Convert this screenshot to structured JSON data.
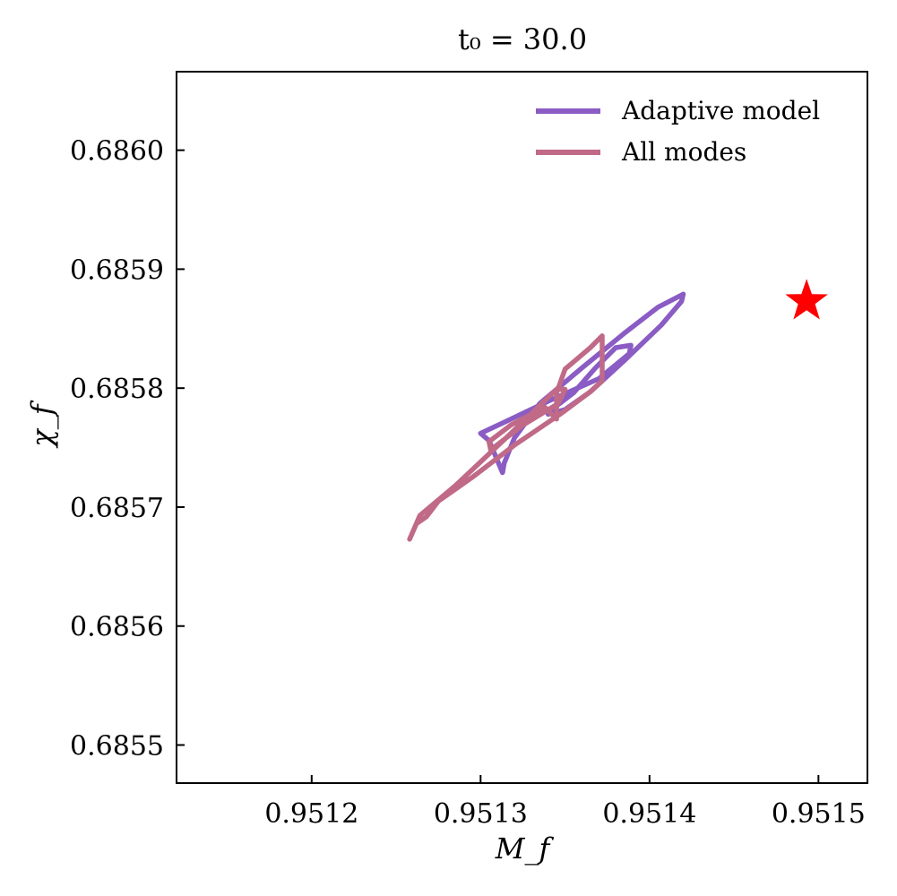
{
  "chart_data": {
    "type": "line",
    "title": "t₀ = 30.0",
    "xlabel": "M_f",
    "ylabel": "χ_f",
    "xlim": [
      0.95112,
      0.951529
    ],
    "ylim": [
      0.685468,
      0.686066
    ],
    "xticks": [
      0.9512,
      0.9513,
      0.9514,
      0.9515
    ],
    "xtick_labels": [
      "0.9512",
      "0.9513",
      "0.9514",
      "0.9515"
    ],
    "yticks": [
      0.6855,
      0.6856,
      0.6857,
      0.6858,
      0.6859,
      0.686
    ],
    "ytick_labels": [
      "0.6855",
      "0.6856",
      "0.6857",
      "0.6858",
      "0.6859",
      "0.6860"
    ],
    "grid": false,
    "legend_position": "top-right",
    "series": [
      {
        "name": "Adaptive model",
        "color": "#8a5cc4",
        "x": [
          0.951313,
          0.951314,
          0.95132,
          0.951335,
          0.95136,
          0.951385,
          0.951405,
          0.95142,
          0.951419,
          0.951407,
          0.951385,
          0.951365,
          0.95135,
          0.95134,
          0.951343,
          0.951355,
          0.951368,
          0.95138,
          0.951389,
          0.951388,
          0.95137,
          0.95134,
          0.951315,
          0.9513,
          0.951305,
          0.951313
        ],
        "y": [
          0.685729,
          0.685737,
          0.685758,
          0.685787,
          0.685817,
          0.685846,
          0.685868,
          0.685879,
          0.685873,
          0.685853,
          0.685823,
          0.685797,
          0.685782,
          0.685778,
          0.685783,
          0.685796,
          0.685817,
          0.685834,
          0.685836,
          0.685829,
          0.685808,
          0.685789,
          0.685772,
          0.685762,
          0.685756,
          0.685729
        ]
      },
      {
        "name": "All modes",
        "color": "#c06a88",
        "x": [
          0.951258,
          0.951262,
          0.951268,
          0.951275,
          0.951295,
          0.95132,
          0.951347,
          0.951365,
          0.951372,
          0.951372,
          0.951365,
          0.95135,
          0.951345,
          0.951345,
          0.951338,
          0.951318,
          0.951305,
          0.951306,
          0.951324,
          0.951346,
          0.95135,
          0.951345,
          0.951318,
          0.951285,
          0.951264,
          0.951258
        ],
        "y": [
          0.685673,
          0.685686,
          0.685692,
          0.685705,
          0.685725,
          0.685752,
          0.685778,
          0.685797,
          0.685806,
          0.685844,
          0.685834,
          0.685816,
          0.685796,
          0.685774,
          0.685784,
          0.685769,
          0.685755,
          0.685748,
          0.685768,
          0.685787,
          0.685799,
          0.685799,
          0.685762,
          0.685718,
          0.685693,
          0.685673
        ]
      }
    ],
    "markers": [
      {
        "type": "star",
        "color": "#ff0000",
        "x": 0.951493,
        "y": 0.685873
      }
    ]
  }
}
